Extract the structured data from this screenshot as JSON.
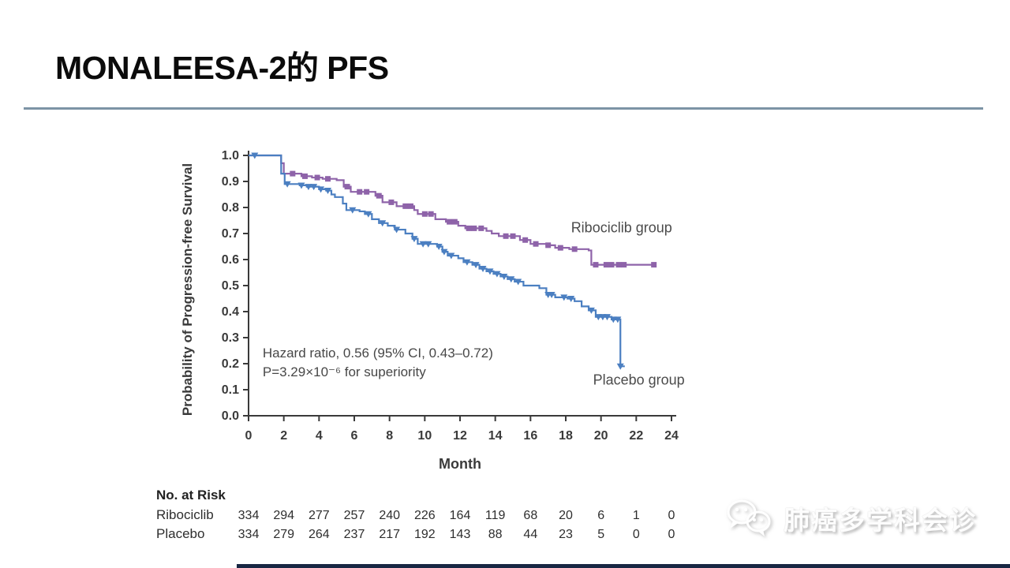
{
  "slide": {
    "title": "MONALEESA-2的 PFS"
  },
  "watermark": {
    "text": "肺癌多学科会诊",
    "icon": "speech-bubbles-icon"
  },
  "accent_colors": {
    "divider": "#7d94a5",
    "bottom_bar": "#182743"
  },
  "chart_data": {
    "type": "line",
    "subtype": "kaplan-meier-step",
    "xlabel": "Month",
    "ylabel": "Probability of Progression-free Survival",
    "xlim": [
      0,
      24
    ],
    "ylim": [
      0.0,
      1.0
    ],
    "grid": false,
    "xtick_labels": [
      "0",
      "2",
      "4",
      "6",
      "8",
      "10",
      "12",
      "14",
      "16",
      "18",
      "20",
      "22",
      "24"
    ],
    "ytick_labels": [
      "0.0",
      "0.1",
      "0.2",
      "0.3",
      "0.4",
      "0.5",
      "0.6",
      "0.7",
      "0.8",
      "0.9",
      "1.0"
    ],
    "annotation": {
      "line1": "Hazard ratio, 0.56 (95% CI, 0.43–0.72)",
      "line2": "P=3.29×10⁻⁶ for superiority",
      "color": "#474747"
    },
    "series": [
      {
        "name": "Ribociclib group",
        "color": "#8e63a9",
        "marker": "square",
        "label_pos": [
          18.3,
          0.705
        ],
        "steps": [
          [
            0,
            1.0
          ],
          [
            1.7,
            1.0
          ],
          [
            1.85,
            0.97
          ],
          [
            2,
            0.93
          ],
          [
            3,
            0.92
          ],
          [
            3.6,
            0.915
          ],
          [
            4.2,
            0.91
          ],
          [
            5,
            0.905
          ],
          [
            5.4,
            0.88
          ],
          [
            5.8,
            0.86
          ],
          [
            7.2,
            0.845
          ],
          [
            7.6,
            0.82
          ],
          [
            8.4,
            0.805
          ],
          [
            9.4,
            0.79
          ],
          [
            9.6,
            0.775
          ],
          [
            10.6,
            0.755
          ],
          [
            11.2,
            0.745
          ],
          [
            11.9,
            0.73
          ],
          [
            12.3,
            0.72
          ],
          [
            13.5,
            0.71
          ],
          [
            13.8,
            0.7
          ],
          [
            14.2,
            0.69
          ],
          [
            15.4,
            0.675
          ],
          [
            16,
            0.66
          ],
          [
            16.9,
            0.655
          ],
          [
            17.4,
            0.645
          ],
          [
            18.2,
            0.64
          ],
          [
            19.3,
            0.635
          ],
          [
            19.45,
            0.58
          ],
          [
            23,
            0.58
          ]
        ],
        "censors": [
          [
            2.5,
            0.93
          ],
          [
            3.2,
            0.92
          ],
          [
            3.9,
            0.915
          ],
          [
            4.5,
            0.91
          ],
          [
            5.6,
            0.88
          ],
          [
            6.3,
            0.86
          ],
          [
            6.7,
            0.86
          ],
          [
            7.4,
            0.845
          ],
          [
            8.1,
            0.82
          ],
          [
            8.9,
            0.805
          ],
          [
            9.2,
            0.805
          ],
          [
            10,
            0.775
          ],
          [
            10.35,
            0.775
          ],
          [
            11.4,
            0.745
          ],
          [
            11.7,
            0.745
          ],
          [
            12.5,
            0.72
          ],
          [
            12.8,
            0.72
          ],
          [
            13.2,
            0.72
          ],
          [
            14.6,
            0.69
          ],
          [
            15,
            0.69
          ],
          [
            15.7,
            0.675
          ],
          [
            16.3,
            0.66
          ],
          [
            17,
            0.655
          ],
          [
            17.7,
            0.645
          ],
          [
            18.5,
            0.64
          ],
          [
            19.7,
            0.58
          ],
          [
            20.3,
            0.58
          ],
          [
            20.6,
            0.58
          ],
          [
            21,
            0.58
          ],
          [
            21.3,
            0.58
          ],
          [
            23,
            0.58
          ]
        ]
      },
      {
        "name": "Placebo group",
        "color": "#4b7fc1",
        "marker": "triangle-down",
        "label_pos": [
          19.55,
          0.12
        ],
        "steps": [
          [
            0,
            1.0
          ],
          [
            1.7,
            1.0
          ],
          [
            1.85,
            0.93
          ],
          [
            2.05,
            0.89
          ],
          [
            2.9,
            0.885
          ],
          [
            3.3,
            0.88
          ],
          [
            4,
            0.87
          ],
          [
            4.4,
            0.865
          ],
          [
            4.7,
            0.85
          ],
          [
            4.9,
            0.84
          ],
          [
            5.35,
            0.815
          ],
          [
            5.55,
            0.79
          ],
          [
            6.3,
            0.785
          ],
          [
            6.6,
            0.775
          ],
          [
            7,
            0.755
          ],
          [
            7.4,
            0.74
          ],
          [
            7.9,
            0.73
          ],
          [
            8.3,
            0.715
          ],
          [
            8.9,
            0.7
          ],
          [
            9.3,
            0.68
          ],
          [
            9.6,
            0.66
          ],
          [
            10.7,
            0.65
          ],
          [
            11,
            0.63
          ],
          [
            11.3,
            0.615
          ],
          [
            11.9,
            0.605
          ],
          [
            12.2,
            0.59
          ],
          [
            12.7,
            0.58
          ],
          [
            13.1,
            0.565
          ],
          [
            13.5,
            0.555
          ],
          [
            13.9,
            0.545
          ],
          [
            14.3,
            0.535
          ],
          [
            14.7,
            0.525
          ],
          [
            15.1,
            0.515
          ],
          [
            15.6,
            0.5
          ],
          [
            16.5,
            0.49
          ],
          [
            16.9,
            0.465
          ],
          [
            17.4,
            0.455
          ],
          [
            18.1,
            0.45
          ],
          [
            18.5,
            0.44
          ],
          [
            18.9,
            0.42
          ],
          [
            19.3,
            0.405
          ],
          [
            19.7,
            0.38
          ],
          [
            20.6,
            0.37
          ],
          [
            21.1,
            0.19
          ],
          [
            21.35,
            0.19
          ]
        ],
        "censors": [
          [
            0.35,
            1.0
          ],
          [
            2.2,
            0.89
          ],
          [
            3.0,
            0.885
          ],
          [
            3.4,
            0.88
          ],
          [
            3.7,
            0.88
          ],
          [
            4.1,
            0.87
          ],
          [
            4.5,
            0.865
          ],
          [
            5.9,
            0.79
          ],
          [
            6.8,
            0.775
          ],
          [
            7.6,
            0.74
          ],
          [
            8.4,
            0.715
          ],
          [
            9.4,
            0.68
          ],
          [
            9.9,
            0.66
          ],
          [
            10.2,
            0.66
          ],
          [
            10.8,
            0.65
          ],
          [
            11.1,
            0.63
          ],
          [
            11.5,
            0.615
          ],
          [
            12.4,
            0.59
          ],
          [
            12.9,
            0.58
          ],
          [
            13.3,
            0.565
          ],
          [
            13.7,
            0.555
          ],
          [
            14.1,
            0.545
          ],
          [
            14.5,
            0.535
          ],
          [
            14.9,
            0.525
          ],
          [
            15.3,
            0.515
          ],
          [
            17.0,
            0.465
          ],
          [
            17.2,
            0.465
          ],
          [
            17.9,
            0.455
          ],
          [
            18.3,
            0.45
          ],
          [
            19.45,
            0.405
          ],
          [
            19.85,
            0.38
          ],
          [
            20.1,
            0.38
          ],
          [
            20.35,
            0.38
          ],
          [
            20.7,
            0.37
          ],
          [
            20.95,
            0.37
          ],
          [
            21.1,
            0.19
          ]
        ]
      }
    ],
    "risk_table": {
      "title": "No. at Risk",
      "rows": [
        {
          "label": "Ribociclib",
          "values": [
            334,
            294,
            277,
            257,
            240,
            226,
            164,
            119,
            68,
            20,
            6,
            1,
            0
          ]
        },
        {
          "label": "Placebo",
          "values": [
            334,
            279,
            264,
            237,
            217,
            192,
            143,
            88,
            44,
            23,
            5,
            0,
            0
          ]
        }
      ]
    }
  }
}
